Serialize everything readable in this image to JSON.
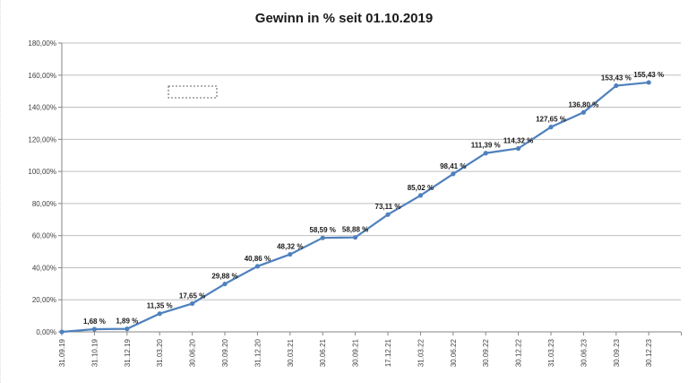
{
  "chart_data": {
    "type": "line",
    "title": "Gewinn in % seit 01.10.2019",
    "xlabel": "",
    "ylabel": "",
    "ylim": [
      0,
      180
    ],
    "yticks": [
      "0,00%",
      "20,00%",
      "40,00%",
      "60,00%",
      "80,00%",
      "100,00%",
      "120,00%",
      "140,00%",
      "160,00%",
      "180,00%"
    ],
    "grid": true,
    "legend": null,
    "categories": [
      "31.09.19",
      "31.10.19",
      "31.12.19",
      "31.03.20",
      "30.06.20",
      "30.09.20",
      "31.12.20",
      "30.03.21",
      "30.06.21",
      "30.09.21",
      "17.12.21",
      "31.03.22",
      "30.06.22",
      "30.09.22",
      "30.12.22",
      "31.03.23",
      "30.06.23",
      "30.09.23",
      "30.12.23"
    ],
    "series": [
      {
        "name": "Gewinn in %",
        "color": "#4f81bd",
        "values": [
          0,
          1.68,
          1.89,
          11.35,
          17.65,
          29.88,
          40.86,
          48.32,
          58.59,
          58.88,
          73.11,
          85.02,
          98.41,
          111.39,
          114.32,
          127.65,
          136.8,
          153.43,
          155.43
        ],
        "data_labels": [
          "",
          "1,68 %",
          "1,89 %",
          "11,35 %",
          "17,65 %",
          "29,88 %",
          "40,86 %",
          "48,32 %",
          "58,59 %",
          "58,88 %",
          "73,11 %",
          "85,02 %",
          "98,41 %",
          "111,39 %",
          "114,32 %",
          "127,65 %",
          "136,80 %",
          "153,43 %",
          "155,43 %"
        ]
      }
    ]
  },
  "colors": {
    "line": "#4f81bd",
    "grid": "#bfbfbf",
    "axis": "#868686",
    "text": "#404040"
  }
}
